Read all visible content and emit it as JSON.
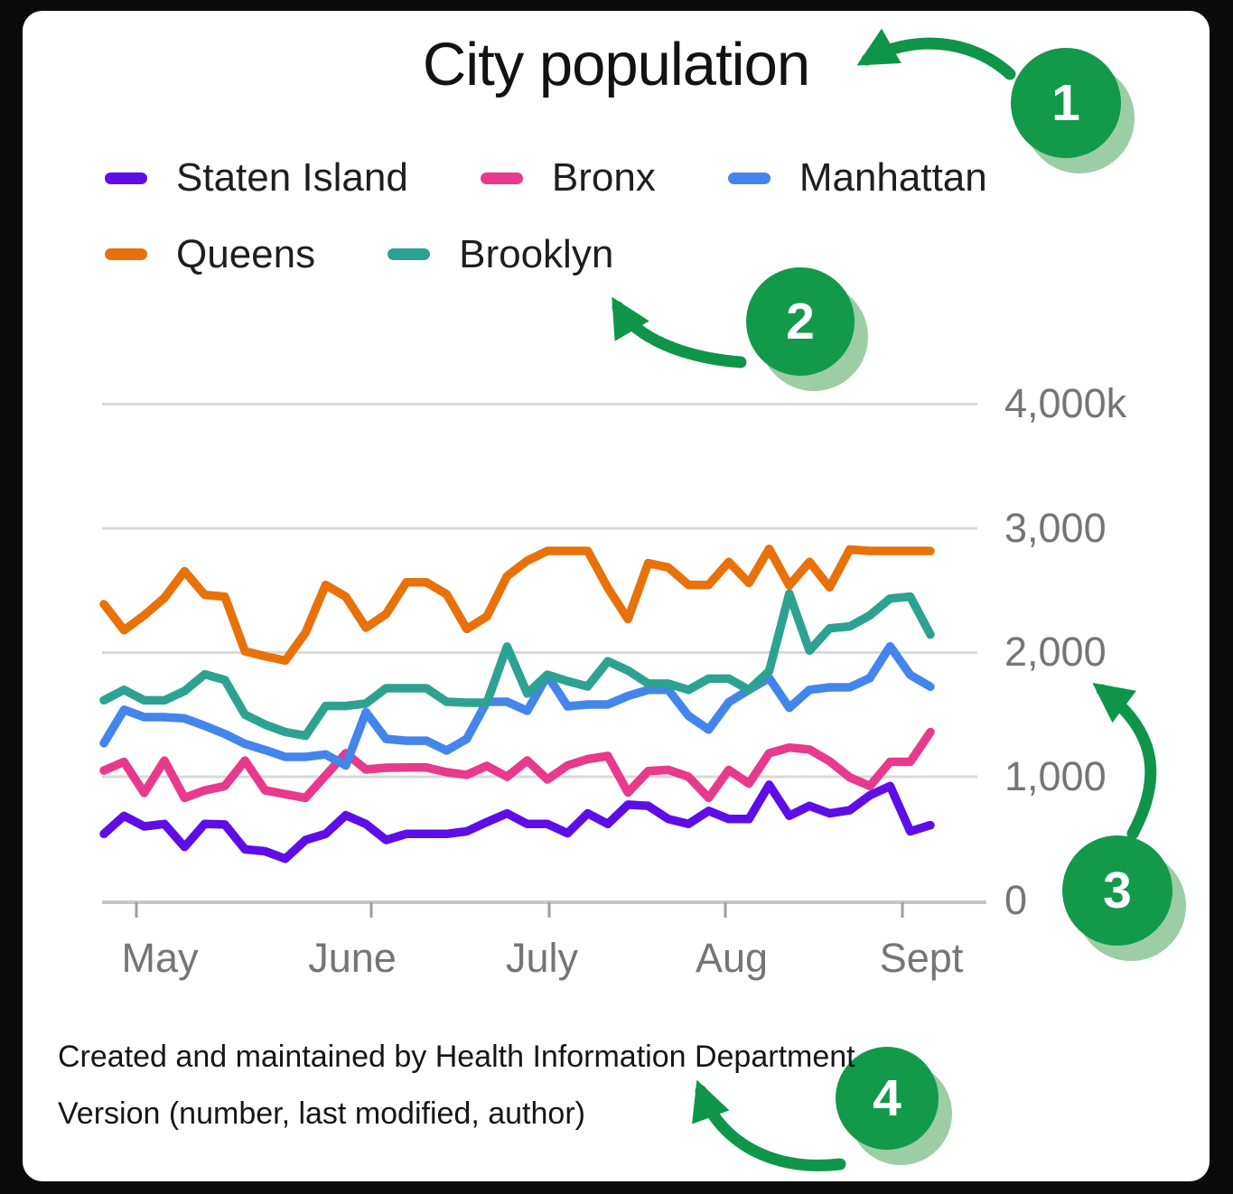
{
  "title": "City population",
  "legend": [
    {
      "label": "Staten Island",
      "color": "#5E0DE8"
    },
    {
      "label": "Bronx",
      "color": "#E8398B"
    },
    {
      "label": "Manhattan",
      "color": "#4485EC"
    },
    {
      "label": "Queens",
      "color": "#E8710A"
    },
    {
      "label": "Brooklyn",
      "color": "#2DA291"
    }
  ],
  "annotations": {
    "callouts": [
      {
        "number": "1"
      },
      {
        "number": "2"
      },
      {
        "number": "3"
      },
      {
        "number": "4"
      }
    ],
    "circle_color": "#12994A",
    "circle_shadow_color": "#9CCDA4",
    "arrow_color": "#0F9549"
  },
  "footer": {
    "line1": "Created and maintained by Health Information Department",
    "line2": "Version (number, last modified, author)"
  },
  "chart_data": {
    "type": "line",
    "title": "City population",
    "x_axis": {
      "labels": [
        "May",
        "June",
        "July",
        "Aug",
        "Sept"
      ]
    },
    "y_axis": {
      "tick_labels": [
        "4,000k",
        "3,000",
        "2,000",
        "1,000",
        "0"
      ],
      "ylim": [
        0,
        4000
      ],
      "unit": "thousands"
    },
    "grid": true,
    "legend_position": "top",
    "series": [
      {
        "name": "Staten Island",
        "color": "#5E0DE8",
        "values": [
          540,
          685,
          600,
          620,
          435,
          620,
          615,
          415,
          400,
          340,
          490,
          540,
          690,
          620,
          490,
          540,
          540,
          540,
          560,
          635,
          705,
          620,
          620,
          545,
          705,
          620,
          775,
          765,
          660,
          620,
          725,
          660,
          660,
          935,
          685,
          765,
          705,
          730,
          850,
          925,
          560,
          610
        ]
      },
      {
        "name": "Bronx",
        "color": "#E8398B",
        "values": [
          1050,
          1120,
          870,
          1130,
          830,
          890,
          925,
          1130,
          890,
          860,
          830,
          1010,
          1190,
          1058,
          1073,
          1074,
          1074,
          1036,
          1015,
          1087,
          1000,
          1131,
          978,
          1091,
          1142,
          1167,
          873,
          1045,
          1055,
          1000,
          830,
          1055,
          945,
          1190,
          1235,
          1220,
          1125,
          995,
          925,
          1120,
          1120,
          1360
        ]
      },
      {
        "name": "Manhattan",
        "color": "#4485EC",
        "values": [
          1270,
          1540,
          1480,
          1480,
          1470,
          1410,
          1345,
          1265,
          1215,
          1160,
          1160,
          1180,
          1090,
          1520,
          1305,
          1290,
          1290,
          1211,
          1305,
          1604,
          1604,
          1531,
          1815,
          1567,
          1582,
          1582,
          1650,
          1700,
          1700,
          1490,
          1380,
          1600,
          1700,
          1795,
          1555,
          1700,
          1720,
          1720,
          1795,
          2050,
          1820,
          1725
        ]
      },
      {
        "name": "Queens",
        "color": "#E8710A",
        "values": [
          2390,
          2180,
          2300,
          2440,
          2655,
          2465,
          2450,
          2010,
          1970,
          1935,
          2160,
          2545,
          2450,
          2200,
          2310,
          2565,
          2565,
          2470,
          2190,
          2290,
          2615,
          2740,
          2818,
          2818,
          2818,
          2520,
          2270,
          2720,
          2685,
          2545,
          2545,
          2730,
          2560,
          2835,
          2540,
          2730,
          2525,
          2830,
          2818,
          2818,
          2818,
          2818
        ]
      },
      {
        "name": "Brooklyn",
        "color": "#2DA291",
        "values": [
          1615,
          1700,
          1615,
          1615,
          1690,
          1825,
          1780,
          1500,
          1420,
          1360,
          1330,
          1570,
          1570,
          1590,
          1713,
          1713,
          1713,
          1604,
          1596,
          1596,
          2048,
          1670,
          1822,
          1770,
          1727,
          1930,
          1855,
          1750,
          1750,
          1700,
          1790,
          1790,
          1700,
          1850,
          2475,
          2015,
          2195,
          2210,
          2300,
          2435,
          2450,
          2145
        ]
      }
    ]
  }
}
